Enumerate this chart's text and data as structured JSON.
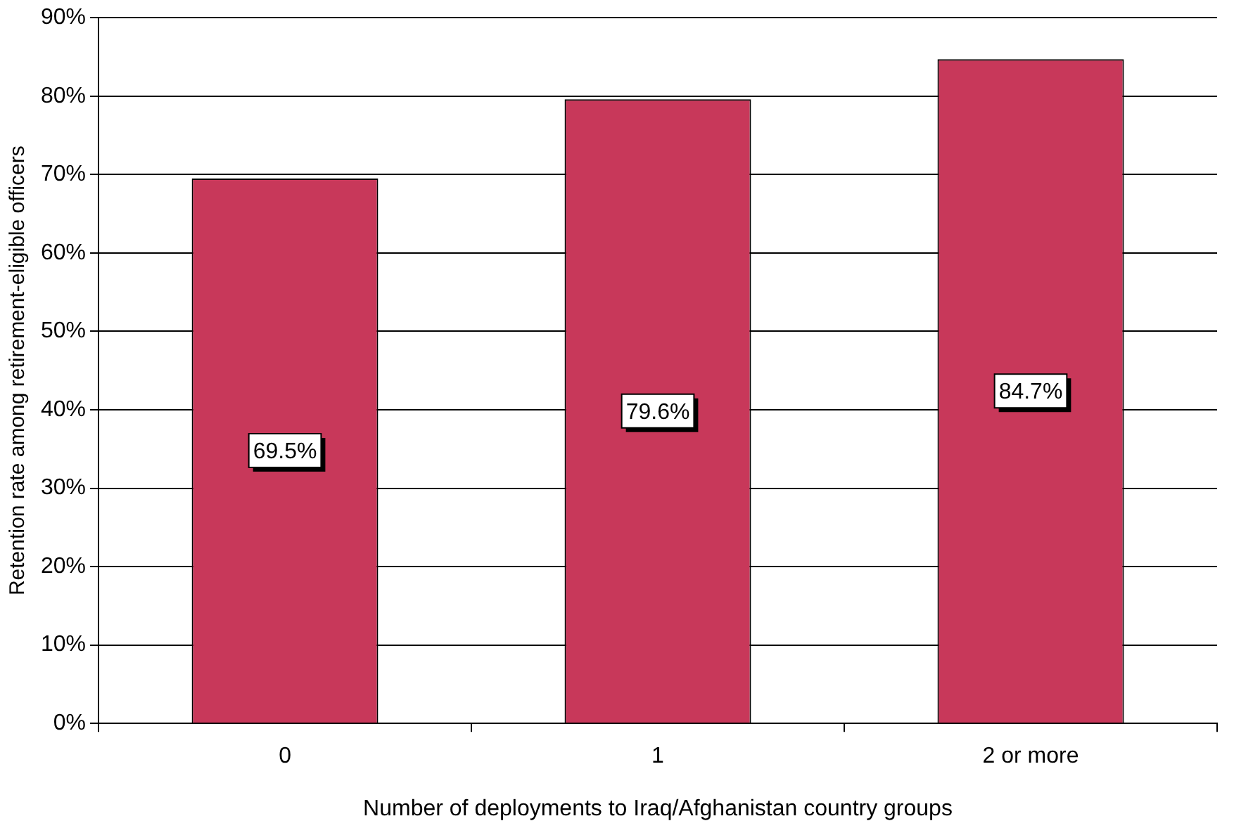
{
  "chart_data": {
    "type": "bar",
    "xlabel": "Number of deployments to Iraq/Afghanistan country groups",
    "ylabel": "Retention rate among retirement-eligible officers",
    "categories": [
      "0",
      "1",
      "2 or more"
    ],
    "values": [
      69.5,
      79.6,
      84.7
    ],
    "value_labels": [
      "69.5%",
      "79.6%",
      "84.7%"
    ],
    "color": "#c8385a",
    "ylim": [
      0,
      90
    ],
    "yticks": [
      {
        "value": 0,
        "label": "0%"
      },
      {
        "value": 10,
        "label": "10%"
      },
      {
        "value": 20,
        "label": "20%"
      },
      {
        "value": 30,
        "label": "30%"
      },
      {
        "value": 40,
        "label": "40%"
      },
      {
        "value": 50,
        "label": "50%"
      },
      {
        "value": 60,
        "label": "60%"
      },
      {
        "value": 70,
        "label": "70%"
      },
      {
        "value": 80,
        "label": "80%"
      },
      {
        "value": 90,
        "label": "90%"
      }
    ],
    "grid": "y",
    "legend": false
  }
}
